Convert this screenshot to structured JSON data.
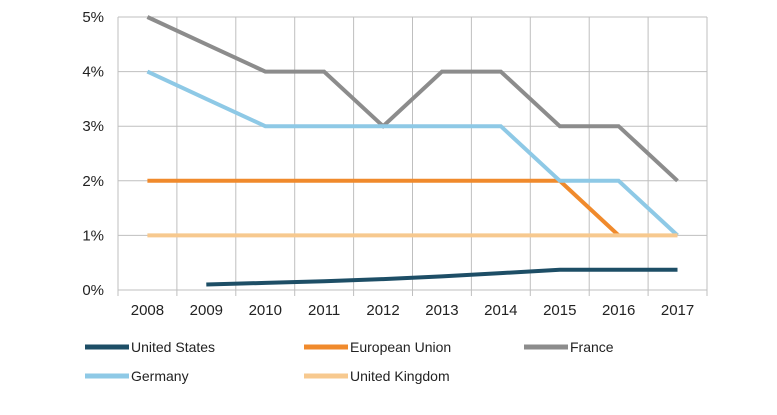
{
  "chart_data": {
    "type": "line",
    "title": "",
    "xlabel": "",
    "ylabel": "",
    "categories": [
      "2008",
      "2009",
      "2010",
      "2011",
      "2012",
      "2013",
      "2014",
      "2015",
      "2016",
      "2017"
    ],
    "ylim": [
      0,
      5
    ],
    "yticks": [
      "0%",
      "1%",
      "2%",
      "3%",
      "4%",
      "5%"
    ],
    "grid": true,
    "legend_position": "bottom",
    "series": [
      {
        "name": "United States",
        "color": "#1d4e66",
        "values": [
          null,
          0.1,
          0.13,
          0.16,
          0.2,
          0.25,
          0.31,
          0.37,
          0.37,
          0.37
        ]
      },
      {
        "name": "European Union",
        "color": "#f08a2c",
        "values": [
          2,
          2,
          2,
          2,
          2,
          2,
          2,
          2,
          1,
          null
        ]
      },
      {
        "name": "France",
        "color": "#8c8c8c",
        "values": [
          5,
          4.5,
          4,
          4,
          3,
          4,
          4,
          3,
          3,
          2
        ]
      },
      {
        "name": "Germany",
        "color": "#8ec9e6",
        "values": [
          4,
          3.5,
          3,
          3,
          3,
          3,
          3,
          2,
          2,
          1
        ]
      },
      {
        "name": "United Kingdom",
        "color": "#f7c98f",
        "values": [
          1,
          1,
          1,
          1,
          1,
          1,
          1,
          1,
          1,
          1
        ]
      }
    ]
  }
}
